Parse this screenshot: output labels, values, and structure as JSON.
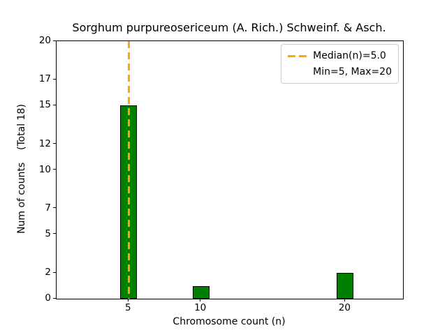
{
  "chart_data": {
    "type": "bar",
    "title": "Sorghum purpureosericeum (A. Rich.) Schweinf. & Asch.",
    "xlabel": "Chromosome count (n)",
    "ylabel": "Num of counts    (Total 18)",
    "total_counts": 18,
    "categories": [
      5,
      10,
      20
    ],
    "values": [
      15,
      1,
      2
    ],
    "xlim": [
      0,
      24
    ],
    "ylim": [
      0,
      20
    ],
    "xticks": [
      5,
      10,
      20
    ],
    "yticks": [
      0,
      2,
      5,
      7,
      10,
      12,
      15,
      17,
      20
    ],
    "bar_width_units": 1.15,
    "grid": false,
    "colors": {
      "bar_fill": "#008000",
      "bar_edge": "#000000",
      "median_line": "#FFA500",
      "axes": "#000000",
      "legend_border": "#cccccc"
    },
    "median_line": {
      "x": 5.0
    },
    "legend": {
      "position": "upper-right",
      "entries": [
        {
          "label": "Median(n)=5.0",
          "handle": "orange-dashed-line"
        },
        {
          "label": "Min=5, Max=20",
          "handle": "none"
        }
      ]
    }
  }
}
